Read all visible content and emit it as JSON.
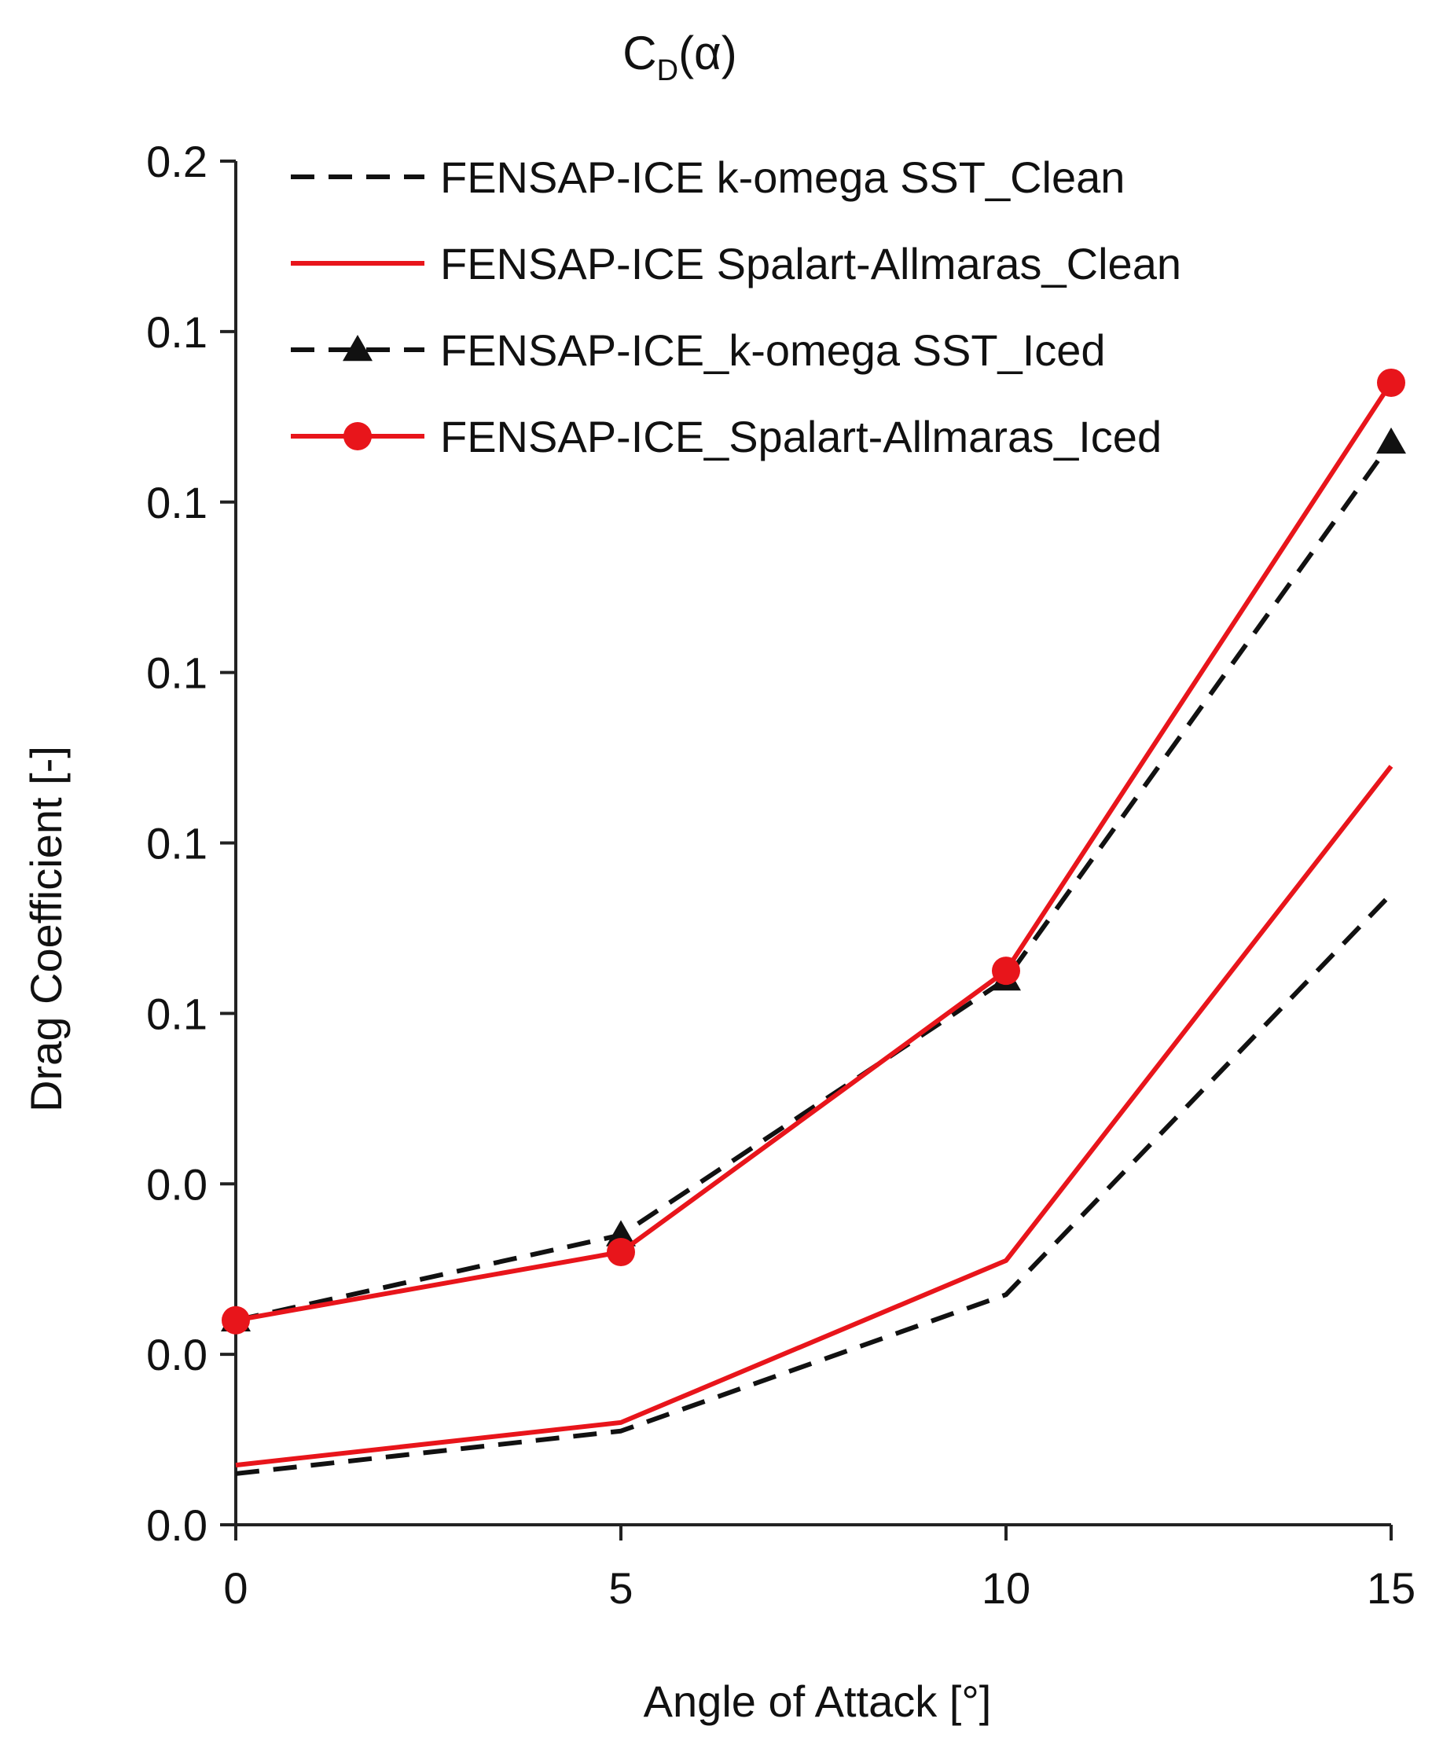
{
  "chart_data": {
    "type": "line",
    "title": {
      "main": "C",
      "subscript": "D",
      "rest": "(α)"
    },
    "xlabel": "Angle of Attack [°]",
    "ylabel": "Drag Coefficient [-]",
    "x": [
      0,
      5,
      10,
      15
    ],
    "x_ticks": [
      "0",
      "5",
      "10",
      "15"
    ],
    "xlim": [
      0,
      15
    ],
    "ylim": [
      0.0,
      0.16
    ],
    "y_tick_values": [
      0.0,
      0.02,
      0.04,
      0.06,
      0.08,
      0.1,
      0.12,
      0.14,
      0.16
    ],
    "y_tick_labels": [
      "0.0",
      "0.0",
      "0.0",
      "0.1",
      "0.1",
      "0.1",
      "0.1",
      "0.1",
      "0.2"
    ],
    "grid": false,
    "legend_position": "top-left",
    "series": [
      {
        "name": "FENSAP-ICE k-omega SST_Clean",
        "values": [
          0.006,
          0.011,
          0.027,
          0.074
        ],
        "color": "#111111",
        "dashed": true,
        "marker": "none"
      },
      {
        "name": "FENSAP-ICE Spalart-Allmaras_Clean",
        "values": [
          0.007,
          0.012,
          0.031,
          0.089
        ],
        "color": "#e8151b",
        "dashed": false,
        "marker": "none"
      },
      {
        "name": "FENSAP-ICE_k-omega SST_Iced",
        "values": [
          0.024,
          0.034,
          0.064,
          0.127
        ],
        "color": "#111111",
        "dashed": true,
        "marker": "triangle"
      },
      {
        "name": "FENSAP-ICE_Spalart-Allmaras_Iced",
        "values": [
          0.024,
          0.032,
          0.065,
          0.134
        ],
        "color": "#e8151b",
        "dashed": false,
        "marker": "circle"
      }
    ]
  }
}
